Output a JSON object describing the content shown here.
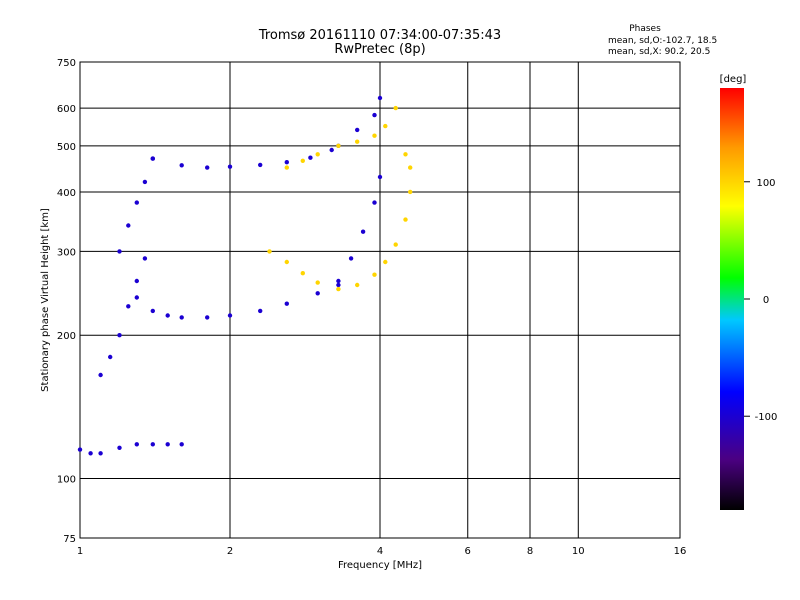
{
  "title": {
    "line1": "Tromsø 20161110 07:34:00-07:35:43",
    "line2": "RwPretec (8p)"
  },
  "stats": {
    "heading": "Phases",
    "line1": "mean, sd,O:-102.7, 18.5",
    "line2": "mean, sd,X:  90.2, 20.5"
  },
  "colorbar": {
    "unit_label": "[deg]",
    "tick_labels": [
      "100",
      "0",
      "-100"
    ],
    "tick_values": [
      100,
      0,
      -100
    ],
    "range": [
      -180,
      180
    ]
  },
  "chart_data": {
    "type": "scatter",
    "xlabel": "Frequency [MHz]",
    "ylabel": "Stationary phase Virtual Height [km]",
    "x_scale": "log",
    "y_scale": "log",
    "xlim": [
      1,
      16
    ],
    "ylim": [
      75,
      750
    ],
    "x_ticks": [
      1,
      2,
      4,
      6,
      8,
      10,
      16
    ],
    "x_tick_labels": [
      "1",
      "2",
      "4",
      "6",
      "8",
      "10",
      "16"
    ],
    "y_ticks": [
      75,
      100,
      200,
      300,
      400,
      500,
      600,
      750
    ],
    "y_tick_labels": [
      "75",
      "100",
      "200",
      "300",
      "400",
      "500",
      "600",
      "750"
    ],
    "grid": true,
    "series": [
      {
        "name": "O",
        "phase": -100,
        "x": [
          1.0,
          1.05,
          1.1,
          1.2,
          1.3,
          1.4,
          1.5,
          1.6,
          1.1,
          1.15,
          1.2,
          1.25,
          1.3,
          1.35,
          1.3,
          1.4,
          1.5,
          1.6,
          1.8,
          2.0,
          2.3,
          2.6,
          3.0,
          3.3,
          3.3,
          3.5,
          3.7,
          3.9,
          4.0,
          1.2,
          1.25,
          1.3,
          1.35,
          1.4,
          1.4,
          1.6,
          1.8,
          2.0,
          2.3,
          2.6,
          2.9,
          3.2,
          3.3,
          3.6,
          3.9,
          4.0
        ],
        "y": [
          115,
          113,
          113,
          116,
          118,
          118,
          118,
          118,
          165,
          180,
          200,
          230,
          260,
          290,
          240,
          225,
          220,
          218,
          218,
          220,
          225,
          233,
          245,
          255,
          260,
          290,
          330,
          380,
          430,
          300,
          340,
          380,
          420,
          470,
          470,
          455,
          450,
          452,
          456,
          462,
          472,
          490,
          500,
          540,
          580,
          630
        ]
      },
      {
        "name": "X",
        "phase": 100,
        "x": [
          2.4,
          2.6,
          2.8,
          3.0,
          3.3,
          3.6,
          3.9,
          4.1,
          4.3,
          4.5,
          4.6,
          4.6,
          4.5,
          2.6,
          2.8,
          3.0,
          3.3,
          3.6,
          3.9,
          4.1,
          4.3
        ],
        "y": [
          300,
          285,
          270,
          258,
          250,
          255,
          268,
          285,
          310,
          350,
          400,
          450,
          480,
          450,
          465,
          480,
          500,
          510,
          525,
          550,
          600
        ]
      }
    ]
  }
}
